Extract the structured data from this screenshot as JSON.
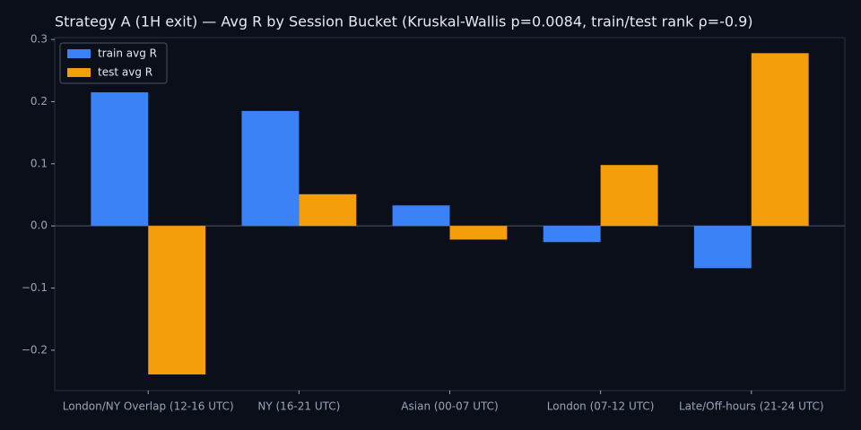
{
  "chart_data": {
    "type": "bar",
    "title": "Strategy A (1H exit) — Avg R by Session Bucket (Kruskal-Wallis p=0.0084, train/test rank ρ=-0.9)",
    "categories": [
      "London/NY Overlap (12-16 UTC)",
      "NY (16-21 UTC)",
      "Asian (00-07 UTC)",
      "London (07-12 UTC)",
      "Late/Off-hours (21-24 UTC)"
    ],
    "series": [
      {
        "name": "train avg R",
        "color": "#3b82f6",
        "values": [
          0.215,
          0.185,
          0.033,
          -0.026,
          -0.068
        ]
      },
      {
        "name": "test avg R",
        "color": "#f59e0b",
        "values": [
          -0.239,
          0.051,
          -0.022,
          0.098,
          0.278
        ]
      }
    ],
    "ylim": [
      -0.265,
      0.303
    ],
    "yticks": [
      {
        "value": -0.2,
        "label": "−0.2"
      },
      {
        "value": -0.1,
        "label": "−0.1"
      },
      {
        "value": 0,
        "label": "0.0"
      },
      0.1,
      0.2,
      0.3
    ],
    "zero_line": true,
    "legend": "upper-left"
  }
}
